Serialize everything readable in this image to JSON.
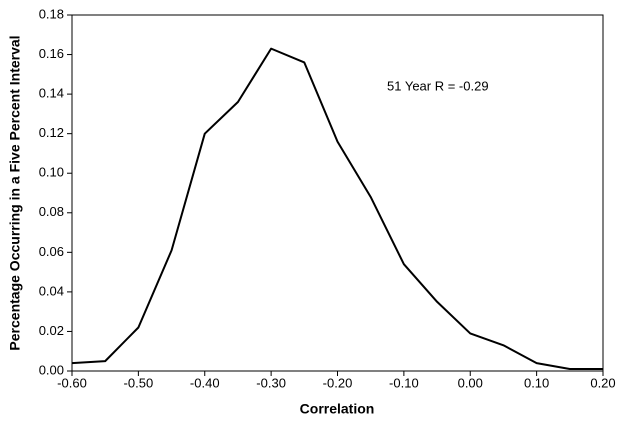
{
  "chart_data": {
    "type": "line",
    "x_label": "Correlation",
    "y_label": "Percentage Occurring in a Five Percent Interval",
    "annotation": "51 Year R = -0.29",
    "x": [
      -0.6,
      -0.55,
      -0.5,
      -0.45,
      -0.4,
      -0.35,
      -0.3,
      -0.25,
      -0.2,
      -0.15,
      -0.1,
      -0.05,
      0.0,
      0.05,
      0.1,
      0.15,
      0.2
    ],
    "series": [
      {
        "color": "#000000",
        "values": [
          0.004,
          0.005,
          0.022,
          0.061,
          0.12,
          0.136,
          0.163,
          0.156,
          0.116,
          0.088,
          0.054,
          0.035,
          0.019,
          0.013,
          0.004,
          0.001,
          0.001
        ]
      }
    ],
    "xlim": [
      -0.6,
      0.2
    ],
    "xticks": [
      {
        "value": -0.6,
        "label": "-0.60"
      },
      {
        "value": -0.5,
        "label": "-0.50"
      },
      {
        "value": -0.4,
        "label": "-0.40"
      },
      {
        "value": -0.3,
        "label": "-0.30"
      },
      {
        "value": -0.2,
        "label": "-0.20"
      },
      {
        "value": -0.1,
        "label": "-0.10"
      },
      {
        "value": 0,
        "label": "0.00"
      },
      {
        "value": 0.1,
        "label": "0.10"
      },
      {
        "value": 0.2,
        "label": "0.20"
      }
    ],
    "ylim": [
      0,
      0.18
    ],
    "yticks": [
      {
        "value": 0,
        "label": "0.00"
      },
      {
        "value": 0.02,
        "label": "0.02"
      },
      {
        "value": 0.04,
        "label": "0.04"
      },
      {
        "value": 0.06,
        "label": "0.06"
      },
      {
        "value": 0.08,
        "label": "0.08"
      },
      {
        "value": 0.1,
        "label": "0.10"
      },
      {
        "value": 0.12,
        "label": "0.12"
      },
      {
        "value": 0.14,
        "label": "0.14"
      },
      {
        "value": 0.16,
        "label": "0.16"
      },
      {
        "value": 0.18,
        "label": "0.18"
      }
    ],
    "grid": false
  }
}
